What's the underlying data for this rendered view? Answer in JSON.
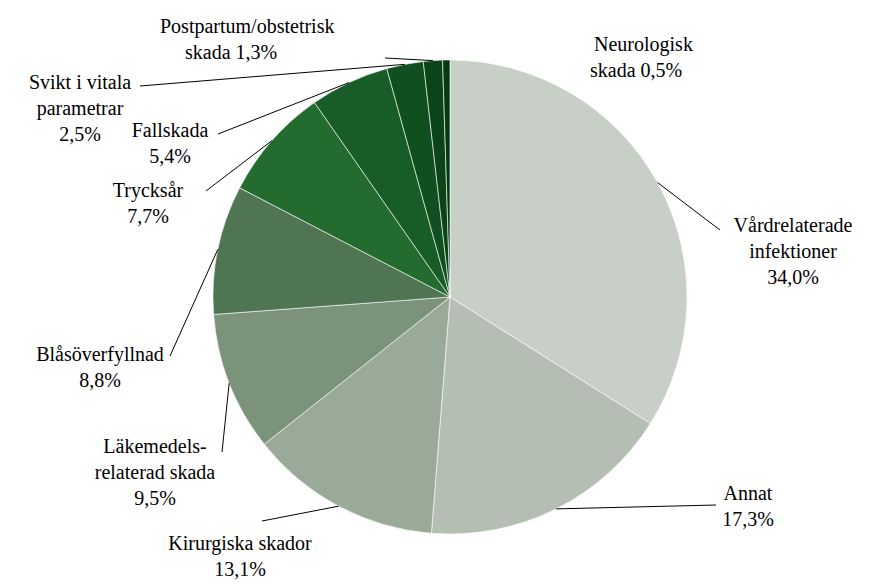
{
  "chart_data": {
    "type": "pie",
    "categories": [
      "Vårdrelaterade\ninfektioner",
      "Annat",
      "Kirurgiska skador",
      "Läkemedels-\nrelaterad skada",
      "Blåsöverfyllnad",
      "Trycksår",
      "Fallskada",
      "Svikt i vitala\nparametrar",
      "Postpartum/obstetrisk\nskada",
      "Neurologisk\nskada"
    ],
    "values": [
      34.0,
      17.3,
      13.1,
      9.5,
      8.8,
      7.7,
      5.4,
      2.5,
      1.3,
      0.5
    ],
    "value_labels": [
      "34,0%",
      "17,3%",
      "13,1%",
      "9,5%",
      "8,8%",
      "7,7%",
      "5,4%",
      "2,5%",
      "1,3%",
      "0,5%"
    ],
    "colors": [
      "#c8cfc6",
      "#b5beb3",
      "#9aaa98",
      "#7a937a",
      "#4f7553",
      "#236b2f",
      "#185d27",
      "#105020",
      "#0b4419",
      "#073a13"
    ],
    "data_labels": true
  }
}
